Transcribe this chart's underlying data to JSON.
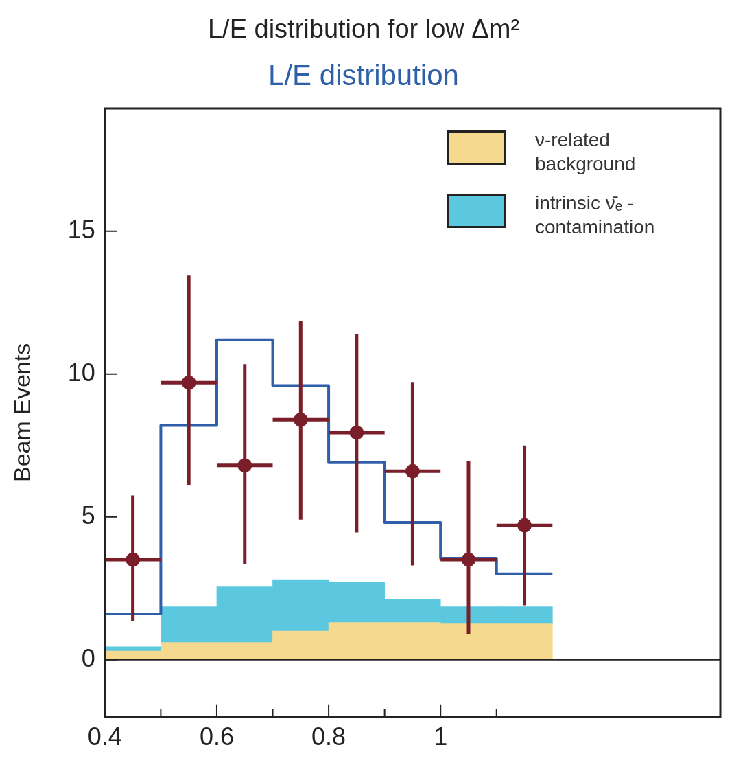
{
  "chart_data": {
    "type": "bar",
    "title": "L/E distribution for low Δm²",
    "subtitle": "L/E distribution",
    "ylabel": "Beam Events",
    "x": [
      0.45,
      0.55,
      0.65,
      0.75,
      0.85,
      0.95,
      1.05,
      1.15
    ],
    "stacked": true,
    "series": [
      {
        "name": "ν-related background",
        "color": "#f5d98f",
        "values": [
          0.3,
          0.6,
          0.6,
          1.0,
          1.3,
          1.3,
          1.25,
          1.25
        ]
      },
      {
        "name": "intrinsic ν̄ₑ - contamination",
        "color": "#5bc8e0",
        "values": [
          0.15,
          1.25,
          1.95,
          1.8,
          1.4,
          0.8,
          0.6,
          0.6
        ]
      },
      {
        "type": "step",
        "color": "#2f5fa8",
        "x": [
          0.4,
          0.5,
          0.6,
          0.7,
          0.8,
          0.9,
          1.0,
          1.1,
          1.2
        ],
        "values": [
          1.6,
          8.2,
          11.2,
          9.6,
          6.9,
          4.8,
          3.55,
          3.0,
          3.0
        ]
      },
      {
        "type": "scatter",
        "color": "#7a1f2a",
        "marker": "circle",
        "values": [
          3.5,
          9.7,
          6.8,
          8.4,
          7.95,
          6.6,
          3.5,
          4.7
        ],
        "errors": [
          [
            1.35,
            5.75
          ],
          [
            6.1,
            13.45
          ],
          [
            3.35,
            10.35
          ],
          [
            4.9,
            11.85
          ],
          [
            4.45,
            11.4
          ],
          [
            3.3,
            9.7
          ],
          [
            0.9,
            6.95
          ],
          [
            1.9,
            7.5
          ]
        ],
        "xerrors": [
          0.05,
          0.05,
          0.05,
          0.05,
          0.05,
          0.05,
          0.05,
          0.05
        ]
      }
    ],
    "ref_lines": [
      {
        "axis": "y",
        "value": 0,
        "color": "#222222"
      }
    ],
    "xlim": [
      0.4,
      1.5
    ],
    "xticks": [
      0.4,
      {
        "value": 0.5,
        "label": null
      },
      0.6,
      {
        "value": 0.7,
        "label": null
      },
      0.8,
      {
        "value": 0.9,
        "label": null
      },
      1,
      {
        "value": 1.1,
        "label": null
      }
    ],
    "ylim": [
      -2,
      19.3
    ],
    "yticks": [
      0,
      5,
      10,
      15
    ],
    "legend": "top right"
  }
}
